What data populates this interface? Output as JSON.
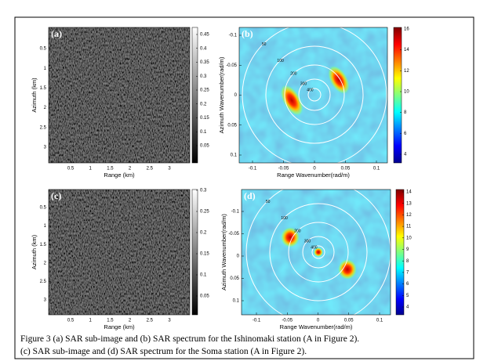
{
  "figure": {
    "panels": [
      {
        "label": "(a)",
        "xlabel": "Range (km)",
        "ylabel": "Azimuth (km)",
        "xticks": [
          0.5,
          1,
          1.5,
          2,
          2.5,
          3
        ],
        "yticks": [
          0.5,
          1,
          1.5,
          2,
          2.5,
          3
        ],
        "colorbar_ticks": [
          0.05,
          0.1,
          0.15,
          0.2,
          0.25,
          0.3,
          0.35,
          0.4,
          0.45
        ]
      },
      {
        "label": "(b)",
        "xlabel": "Range Wavenumber(rad/m)",
        "ylabel": "Azimuth Wavenumber(rad/m)",
        "xticks": [
          -0.1,
          -0.05,
          0,
          0.05,
          0.1
        ],
        "yticks": [
          -0.1,
          -0.05,
          0,
          0.05,
          0.1
        ],
        "colorbar_ticks": [
          4,
          6,
          8,
          10,
          12,
          14,
          16
        ],
        "contour_labels": [
          "400",
          "300",
          "200",
          "100",
          "50"
        ]
      },
      {
        "label": "(c)",
        "xlabel": "Range (km)",
        "ylabel": "Azimuth (km)",
        "xticks": [
          0.5,
          1,
          1.5,
          2,
          2.5,
          3
        ],
        "yticks": [
          0.5,
          1,
          1.5,
          2,
          2.5,
          3
        ],
        "colorbar_ticks": [
          0.05,
          0.1,
          0.15,
          0.2,
          0.25,
          0.3
        ]
      },
      {
        "label": "(d)",
        "xlabel": "Range Wavenumber(rad/m)",
        "ylabel": "Azimuth Wavenumber(rad/m)",
        "xticks": [
          -0.1,
          -0.05,
          0,
          0.05,
          0.1
        ],
        "yticks": [
          -0.1,
          -0.05,
          0,
          0.05,
          0.1
        ],
        "colorbar_ticks": [
          4,
          5,
          6,
          7,
          8,
          9,
          10,
          11,
          12,
          13,
          14
        ],
        "contour_labels": [
          "400",
          "300",
          "200",
          "100",
          "50"
        ]
      }
    ],
    "caption": [
      "Figure 3  (a) SAR sub-image and (b) SAR spectrum for the Ishinomaki station (A in Figure 2).",
      "(c) SAR sub-image and (d) SAR spectrum for the Soma station (A in Figure 2)."
    ]
  }
}
